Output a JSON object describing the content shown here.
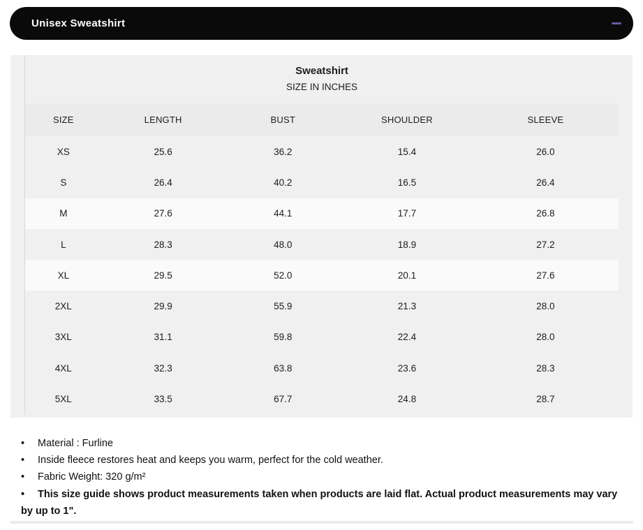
{
  "accordion": {
    "title": "Unisex Sweatshirt",
    "collapse_icon": "minus-icon",
    "header_bg": "#0a0a0a",
    "icon_color": "#675c9e"
  },
  "table": {
    "title": "Sweatshirt",
    "subtitle": "SIZE IN INCHES",
    "columns": [
      "SIZE",
      "LENGTH",
      "BUST",
      "SHOULDER",
      "SLEEVE"
    ],
    "rows": [
      {
        "cells": [
          "XS",
          "25.6",
          "36.2",
          "15.4",
          "26.0"
        ],
        "light": false
      },
      {
        "cells": [
          "S",
          "26.4",
          "40.2",
          "16.5",
          "26.4"
        ],
        "light": false
      },
      {
        "cells": [
          "M",
          "27.6",
          "44.1",
          "17.7",
          "26.8"
        ],
        "light": true
      },
      {
        "cells": [
          "L",
          "28.3",
          "48.0",
          "18.9",
          "27.2"
        ],
        "light": false
      },
      {
        "cells": [
          "XL",
          "29.5",
          "52.0",
          "20.1",
          "27.6"
        ],
        "light": true
      },
      {
        "cells": [
          "2XL",
          "29.9",
          "55.9",
          "21.3",
          "28.0"
        ],
        "light": false
      },
      {
        "cells": [
          "3XL",
          "31.1",
          "59.8",
          "22.4",
          "28.0"
        ],
        "light": false
      },
      {
        "cells": [
          "4XL",
          "32.3",
          "63.8",
          "23.6",
          "28.3"
        ],
        "light": false
      },
      {
        "cells": [
          "5XL",
          "33.5",
          "67.7",
          "24.8",
          "28.7"
        ],
        "light": false
      }
    ]
  },
  "notes": [
    {
      "text": "Material : Furline",
      "bold": false
    },
    {
      "text": "Inside fleece restores heat and keeps you warm, perfect for the cold weather.",
      "bold": false
    },
    {
      "text": "Fabric Weight: 320 g/m²",
      "bold": false
    },
    {
      "text": "This size guide shows product measurements taken when products are laid flat. Actual product measurements may vary by up to 1\".",
      "bold": true
    }
  ],
  "colors": {
    "header_bar": "#0a0a0a",
    "minus_icon": "#675c9e",
    "table_bg": "#f0f0f0",
    "table_header_band": "#ebebeb",
    "light_row": "#fafafa",
    "table_left_border": "#d8d8d8",
    "divider": "#ececec",
    "text": "#1c1c1c"
  }
}
